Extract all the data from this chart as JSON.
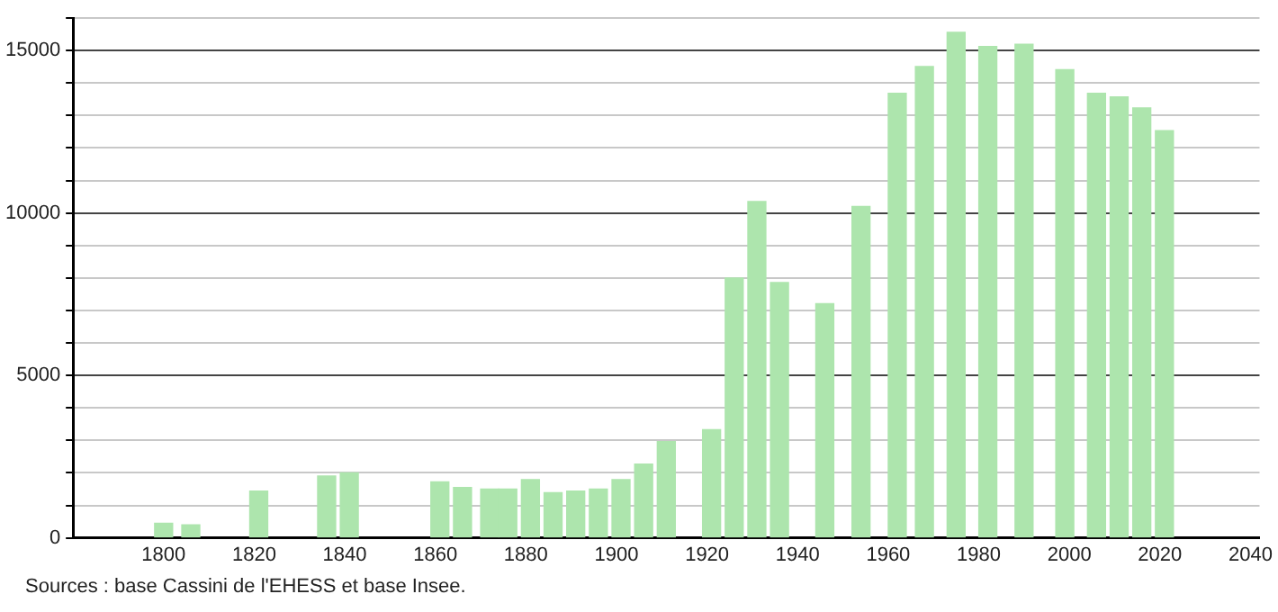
{
  "chart_data": {
    "type": "bar",
    "x": [
      1800,
      1806,
      1821,
      1836,
      1841,
      1861,
      1866,
      1872,
      1876,
      1881,
      1886,
      1891,
      1896,
      1901,
      1906,
      1911,
      1921,
      1926,
      1931,
      1936,
      1946,
      1954,
      1962,
      1968,
      1975,
      1982,
      1990,
      1999,
      2006,
      2011,
      2016,
      2021
    ],
    "values": [
      450,
      400,
      1440,
      1900,
      2000,
      1720,
      1550,
      1500,
      1500,
      1790,
      1390,
      1440,
      1500,
      1790,
      2270,
      2960,
      3330,
      8000,
      10350,
      7860,
      7210,
      10200,
      13680,
      14510,
      15560,
      15120,
      15190,
      14410,
      13680,
      13570,
      13230,
      12530
    ],
    "color": "#ade5ad",
    "xlim": [
      1780,
      2042
    ],
    "xticks": [
      1800,
      1820,
      1840,
      1860,
      1880,
      1900,
      1920,
      1940,
      1960,
      1980,
      2000,
      2020,
      2040
    ],
    "ylim": [
      0,
      16000
    ],
    "yticks": [
      0,
      {
        "value": 1000,
        "label": null
      },
      {
        "value": 2000,
        "label": null
      },
      {
        "value": 3000,
        "label": null
      },
      {
        "value": 4000,
        "label": null
      },
      5000,
      {
        "value": 6000,
        "label": null
      },
      {
        "value": 7000,
        "label": null
      },
      {
        "value": 8000,
        "label": null
      },
      {
        "value": 9000,
        "label": null
      },
      10000,
      {
        "value": 11000,
        "label": null
      },
      {
        "value": 12000,
        "label": null
      },
      {
        "value": 13000,
        "label": null
      },
      {
        "value": 14000,
        "label": null
      },
      15000,
      {
        "value": 16000,
        "label": null
      }
    ],
    "grid": "y",
    "legend": false,
    "annotations": [
      "Sources : base Cassini de l'EHESS et base Insee."
    ]
  }
}
